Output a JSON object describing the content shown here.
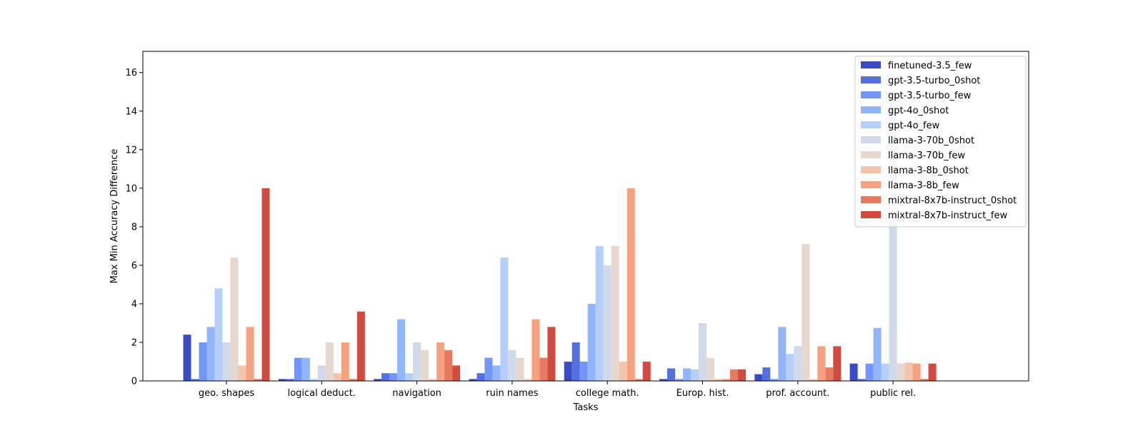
{
  "chart_data": {
    "type": "bar",
    "xlabel": "Tasks",
    "ylabel": "Max Min Accuracy Difference",
    "ylim": [
      0,
      17.1
    ],
    "yticks": [
      0,
      2,
      4,
      6,
      8,
      10,
      12,
      14,
      16
    ],
    "grid": false,
    "legend_position": "top-right",
    "categories": [
      "geo. shapes",
      "logical deduct.",
      "navigation",
      "ruin names",
      "college math.",
      "Europ. hist.",
      "prof. account.",
      "public rel."
    ],
    "series": [
      {
        "name": "finetuned-3.5_few",
        "color": "#3b4cc0",
        "values": [
          2.4,
          0.1,
          0.1,
          0.1,
          1.0,
          0.1,
          0.35,
          0.9
        ]
      },
      {
        "name": "gpt-3.5-turbo_0shot",
        "color": "#5470de",
        "values": [
          0.1,
          0.1,
          0.4,
          0.4,
          2.0,
          0.65,
          0.7,
          0.1
        ]
      },
      {
        "name": "gpt-3.5-turbo_few",
        "color": "#7396f5",
        "values": [
          2.0,
          1.2,
          0.4,
          1.2,
          1.0,
          0.1,
          0.1,
          0.9
        ]
      },
      {
        "name": "gpt-4o_0shot",
        "color": "#93b5fe",
        "values": [
          2.8,
          1.2,
          3.2,
          0.8,
          4.0,
          0.65,
          2.8,
          2.75
        ]
      },
      {
        "name": "gpt-4o_few",
        "color": "#b6cefa",
        "values": [
          4.8,
          0.1,
          0.4,
          6.4,
          7.0,
          0.6,
          1.4,
          0.9
        ]
      },
      {
        "name": "llama-3-70b_0shot",
        "color": "#d1dae9",
        "values": [
          2.0,
          0.8,
          2.0,
          1.6,
          6.0,
          3.0,
          1.8,
          14.9
        ]
      },
      {
        "name": "llama-3-70b_few",
        "color": "#e6d7cf",
        "values": [
          6.4,
          2.0,
          1.6,
          1.2,
          7.0,
          1.2,
          7.1,
          0.9
        ]
      },
      {
        "name": "llama-3-8b_0shot",
        "color": "#f4c4ac",
        "values": [
          0.8,
          0.4,
          0.1,
          0.1,
          1.0,
          0.1,
          0.1,
          0.95
        ]
      },
      {
        "name": "llama-3-8b_few",
        "color": "#f5a182",
        "values": [
          2.8,
          2.0,
          2.0,
          3.2,
          10.0,
          0.1,
          1.8,
          0.9
        ]
      },
      {
        "name": "mixtral-8x7b-instruct_0shot",
        "color": "#e67b62",
        "values": [
          0.1,
          0.1,
          1.6,
          1.2,
          0.1,
          0.6,
          0.7,
          0.1
        ]
      },
      {
        "name": "mixtral-8x7b-instruct_few",
        "color": "#d24b40",
        "values": [
          10.0,
          3.6,
          0.8,
          2.8,
          1.0,
          0.6,
          1.8,
          0.9
        ]
      }
    ]
  }
}
